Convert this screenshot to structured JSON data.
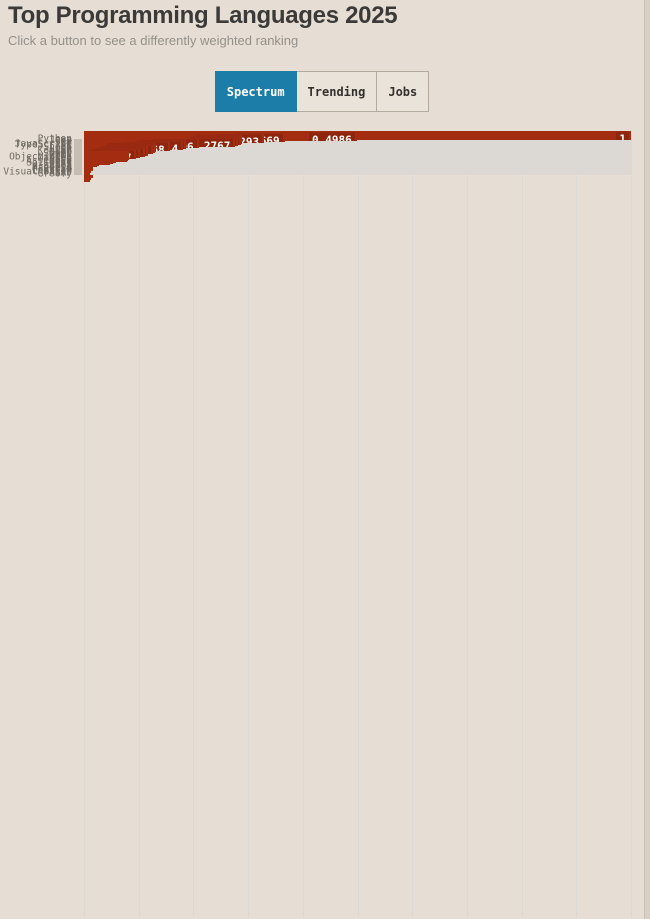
{
  "page": {
    "background": "#e6ded4"
  },
  "header": {
    "title": "Top Programming Languages 2025",
    "subtitle": "Click a button to see a differently weighted ranking"
  },
  "toolbar": {
    "buttons": [
      {
        "label": "Spectrum",
        "active": true
      },
      {
        "label": "Trending",
        "active": false
      },
      {
        "label": "Jobs",
        "active": false
      }
    ],
    "active_bg": "#1c7ea8",
    "active_text": "#ffffff",
    "inactive_bg": "#eae3da",
    "inactive_text": "#33312e",
    "border_color": "#b4ab9f"
  },
  "chart_data": {
    "type": "bar",
    "orientation": "horizontal",
    "title": "Top Programming Languages 2025",
    "xlabel": "",
    "ylabel": "",
    "xlim": [
      0,
      1
    ],
    "gridline_interval": 0.1,
    "grid": true,
    "legend": "none",
    "bar_color": "#a42c11",
    "value_label_color": "#ffffff",
    "categories": [
      "Python",
      "Java",
      "C++",
      "SQL",
      "C#",
      "JavaScript",
      "TypeScript",
      "C",
      "Shell",
      "Go",
      "R",
      "PHP",
      "Kotlin",
      "Rust",
      "Dart",
      "Swift",
      "Ruby",
      "HTML",
      "Objective-C",
      "Matlab",
      "Lua",
      "Perl",
      "Assembly",
      "Cuda",
      "Solidity",
      "SAS",
      "Apex",
      "Scala",
      "Arduino",
      "Haskell",
      "Julia",
      "Fortran",
      "LabView",
      "Visual Basic",
      "ABAP",
      "Groovy"
    ],
    "values": [
      1,
      0.4986,
      0.3669,
      0.3293,
      0.2888,
      0.2872,
      0.2807,
      0.2767,
      0.2096,
      0.1866,
      0.1814,
      0.1568,
      0.1316,
      0.1301,
      0.1257,
      0.1172,
      0.1165,
      0.1113,
      0.1026,
      0.0957,
      0.082,
      0.08,
      0.079,
      0.058,
      0.053,
      0.047,
      0.027,
      0.024,
      0.017,
      0.017,
      0.0165,
      0.016,
      0.013,
      0.012,
      0.0115,
      0.011
    ],
    "value_labels": [
      "1",
      "0.4986",
      "0.3669",
      "0.3293",
      "0.2888",
      "0.2872",
      "0.2807",
      "0.2767",
      "0.2096",
      "0.1866",
      "0.1814",
      "0.1568",
      "0.1316",
      "0.1301",
      "0.1257",
      "0.1172",
      "0.1165",
      "0.1113",
      "0.1026",
      "0.0957",
      null,
      null,
      null,
      null,
      null,
      null,
      null,
      null,
      null,
      null,
      null,
      null,
      null,
      null,
      null,
      null
    ]
  }
}
